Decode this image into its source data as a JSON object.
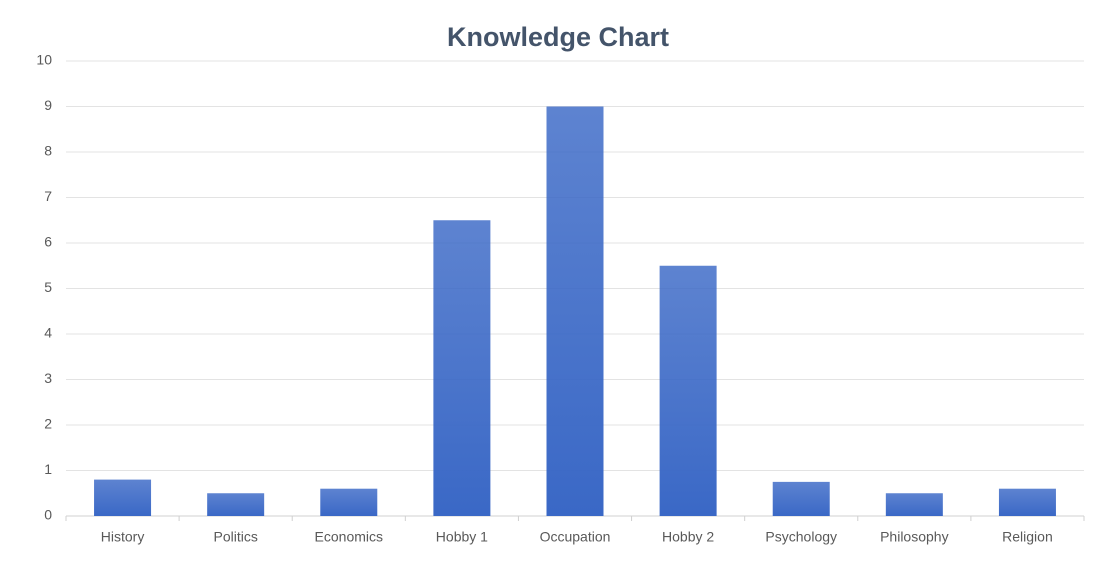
{
  "chart_data": {
    "type": "bar",
    "title": "Knowledge Chart",
    "categories": [
      "History",
      "Politics",
      "Economics",
      "Hobby 1",
      "Occupation",
      "Hobby 2",
      "Psychology",
      "Philosophy",
      "Religion"
    ],
    "values": [
      0.8,
      0.5,
      0.6,
      6.5,
      9,
      5.5,
      0.75,
      0.5,
      0.6
    ],
    "color": "#3a68c6",
    "ylim": [
      0,
      10
    ],
    "yticks": [
      0,
      1,
      2,
      3,
      4,
      5,
      6,
      7,
      8,
      9,
      10
    ],
    "grid": true
  }
}
